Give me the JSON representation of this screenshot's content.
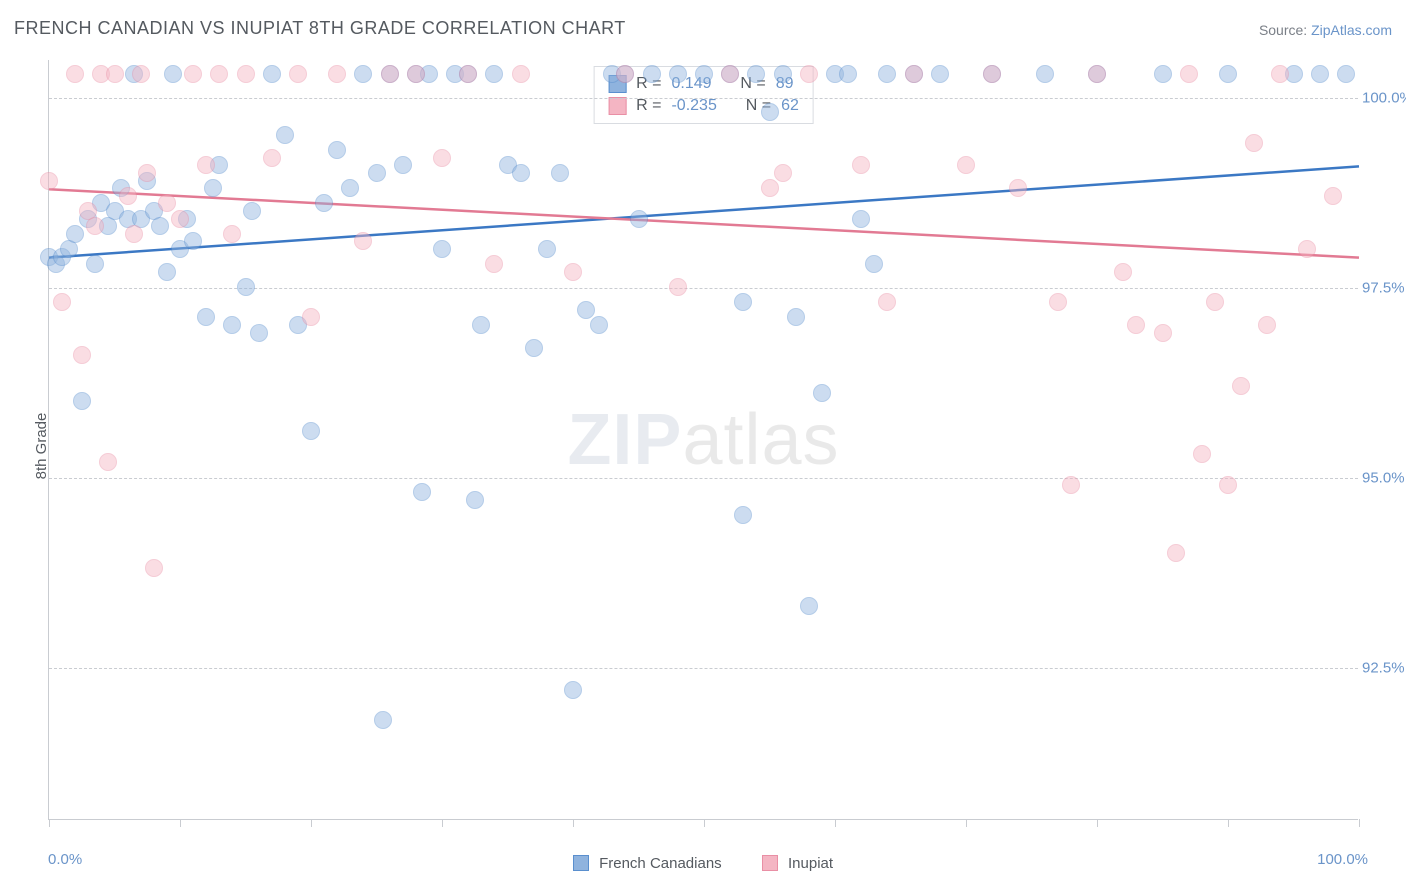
{
  "title": "FRENCH CANADIAN VS INUPIAT 8TH GRADE CORRELATION CHART",
  "source_prefix": "Source: ",
  "source_link": "ZipAtlas.com",
  "ylabel": "8th Grade",
  "watermark_z": "ZIP",
  "watermark_rest": "atlas",
  "chart": {
    "type": "scatter",
    "x_min": 0,
    "x_max": 100,
    "y_min": 90.5,
    "y_max": 100.5,
    "x_label_min": "0.0%",
    "x_label_max": "100.0%",
    "y_ticks": [
      92.5,
      95.0,
      97.5,
      100.0
    ],
    "y_tick_labels": [
      "92.5%",
      "95.0%",
      "97.5%",
      "100.0%"
    ],
    "x_tick_positions": [
      0,
      10,
      20,
      30,
      40,
      50,
      60,
      70,
      80,
      90,
      100
    ],
    "grid_color": "#c9ccd1",
    "background_color": "#ffffff",
    "marker_radius": 9,
    "marker_opacity": 0.45,
    "marker_border_opacity": 0.85
  },
  "series": [
    {
      "key": "fc",
      "name": "French Canadians",
      "fill": "#8fb3de",
      "stroke": "#5a8fce",
      "line_color": "#3b78c4",
      "regression": {
        "x1": 0,
        "y1": 97.9,
        "x2": 100,
        "y2": 99.1
      },
      "R": "0.149",
      "N": "89",
      "points": [
        [
          0,
          97.9
        ],
        [
          0.5,
          97.8
        ],
        [
          1,
          97.9
        ],
        [
          1.5,
          98.0
        ],
        [
          2,
          98.2
        ],
        [
          2.5,
          96.0
        ],
        [
          3,
          98.4
        ],
        [
          3.5,
          97.8
        ],
        [
          4,
          98.6
        ],
        [
          4.5,
          98.3
        ],
        [
          5,
          98.5
        ],
        [
          5.5,
          98.8
        ],
        [
          6,
          98.4
        ],
        [
          6.5,
          100.3
        ],
        [
          7,
          98.4
        ],
        [
          7.5,
          98.9
        ],
        [
          8,
          98.5
        ],
        [
          8.5,
          98.3
        ],
        [
          9,
          97.7
        ],
        [
          9.5,
          100.3
        ],
        [
          10,
          98.0
        ],
        [
          10.5,
          98.4
        ],
        [
          11,
          98.1
        ],
        [
          12,
          97.1
        ],
        [
          12.5,
          98.8
        ],
        [
          13,
          99.1
        ],
        [
          14,
          97.0
        ],
        [
          15,
          97.5
        ],
        [
          15.5,
          98.5
        ],
        [
          16,
          96.9
        ],
        [
          17,
          100.3
        ],
        [
          18,
          99.5
        ],
        [
          19,
          97.0
        ],
        [
          20,
          95.6
        ],
        [
          21,
          98.6
        ],
        [
          22,
          99.3
        ],
        [
          23,
          98.8
        ],
        [
          24,
          100.3
        ],
        [
          25,
          99.0
        ],
        [
          25.5,
          91.8
        ],
        [
          26,
          100.3
        ],
        [
          27,
          99.1
        ],
        [
          28,
          100.3
        ],
        [
          28.5,
          94.8
        ],
        [
          29,
          100.3
        ],
        [
          30,
          98.0
        ],
        [
          31,
          100.3
        ],
        [
          32,
          100.3
        ],
        [
          32.5,
          94.7
        ],
        [
          33,
          97.0
        ],
        [
          34,
          100.3
        ],
        [
          35,
          99.1
        ],
        [
          36,
          99.0
        ],
        [
          37,
          96.7
        ],
        [
          38,
          98.0
        ],
        [
          39,
          99.0
        ],
        [
          40,
          92.2
        ],
        [
          41,
          97.2
        ],
        [
          42,
          97.0
        ],
        [
          43,
          100.3
        ],
        [
          44,
          100.3
        ],
        [
          45,
          98.4
        ],
        [
          46,
          100.3
        ],
        [
          48,
          100.3
        ],
        [
          50,
          100.3
        ],
        [
          52,
          100.3
        ],
        [
          53,
          94.5
        ],
        [
          54,
          100.3
        ],
        [
          55,
          99.8
        ],
        [
          56,
          100.3
        ],
        [
          58,
          93.3
        ],
        [
          59,
          96.1
        ],
        [
          60,
          100.3
        ],
        [
          62,
          98.4
        ],
        [
          64,
          100.3
        ],
        [
          66,
          100.3
        ],
        [
          68,
          100.3
        ],
        [
          72,
          100.3
        ],
        [
          76,
          100.3
        ],
        [
          80,
          100.3
        ],
        [
          85,
          100.3
        ],
        [
          90,
          100.3
        ],
        [
          95,
          100.3
        ],
        [
          97,
          100.3
        ],
        [
          99,
          100.3
        ],
        [
          53,
          97.3
        ],
        [
          57,
          97.1
        ],
        [
          61,
          100.3
        ],
        [
          63,
          97.8
        ]
      ]
    },
    {
      "key": "in",
      "name": "Inupiat",
      "fill": "#f4b5c3",
      "stroke": "#e98fa5",
      "line_color": "#e27a93",
      "regression": {
        "x1": 0,
        "y1": 98.8,
        "x2": 100,
        "y2": 97.9
      },
      "R": "-0.235",
      "N": "62",
      "points": [
        [
          0,
          98.9
        ],
        [
          1,
          97.3
        ],
        [
          2,
          100.3
        ],
        [
          2.5,
          96.6
        ],
        [
          3,
          98.5
        ],
        [
          3.5,
          98.3
        ],
        [
          4,
          100.3
        ],
        [
          4.5,
          95.2
        ],
        [
          5,
          100.3
        ],
        [
          6,
          98.7
        ],
        [
          6.5,
          98.2
        ],
        [
          7,
          100.3
        ],
        [
          7.5,
          99.0
        ],
        [
          8,
          93.8
        ],
        [
          9,
          98.6
        ],
        [
          10,
          98.4
        ],
        [
          11,
          100.3
        ],
        [
          12,
          99.1
        ],
        [
          13,
          100.3
        ],
        [
          14,
          98.2
        ],
        [
          15,
          100.3
        ],
        [
          17,
          99.2
        ],
        [
          19,
          100.3
        ],
        [
          20,
          97.1
        ],
        [
          22,
          100.3
        ],
        [
          24,
          98.1
        ],
        [
          26,
          100.3
        ],
        [
          28,
          100.3
        ],
        [
          30,
          99.2
        ],
        [
          32,
          100.3
        ],
        [
          34,
          97.8
        ],
        [
          36,
          100.3
        ],
        [
          40,
          97.7
        ],
        [
          44,
          100.3
        ],
        [
          48,
          97.5
        ],
        [
          52,
          100.3
        ],
        [
          55,
          98.8
        ],
        [
          56,
          99.0
        ],
        [
          58,
          100.3
        ],
        [
          62,
          99.1
        ],
        [
          64,
          97.3
        ],
        [
          66,
          100.3
        ],
        [
          70,
          99.1
        ],
        [
          72,
          100.3
        ],
        [
          74,
          98.8
        ],
        [
          77,
          97.3
        ],
        [
          78,
          94.9
        ],
        [
          80,
          100.3
        ],
        [
          82,
          97.7
        ],
        [
          83,
          97.0
        ],
        [
          85,
          96.9
        ],
        [
          86,
          94.0
        ],
        [
          87,
          100.3
        ],
        [
          88,
          95.3
        ],
        [
          89,
          97.3
        ],
        [
          90,
          94.9
        ],
        [
          91,
          96.2
        ],
        [
          92,
          99.4
        ],
        [
          93,
          97.0
        ],
        [
          94,
          100.3
        ],
        [
          96,
          98.0
        ],
        [
          98,
          98.7
        ]
      ]
    }
  ],
  "legend_top": {
    "R_label": "R =",
    "N_label": "N ="
  }
}
